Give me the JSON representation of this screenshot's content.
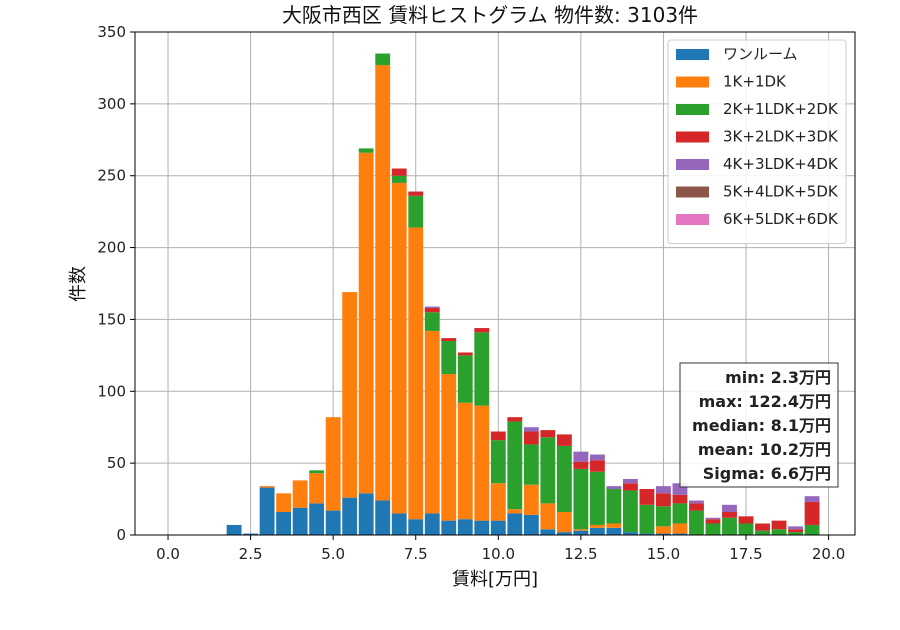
{
  "chart_data": {
    "type": "bar",
    "stacked": true,
    "title": "大阪市西区 賃料ヒストグラム 物件数: 3103件",
    "xlabel": "賃料[万円]",
    "ylabel": "件数",
    "xlim": [
      -1.0,
      20.8
    ],
    "ylim": [
      0,
      350
    ],
    "xticks": [
      "0.0",
      "2.5",
      "5.0",
      "7.5",
      "10.0",
      "12.5",
      "15.0",
      "17.5",
      "20.0"
    ],
    "yticks": [
      "0",
      "50",
      "100",
      "150",
      "200",
      "250",
      "300",
      "350"
    ],
    "grid": true,
    "legend_position": "top-right",
    "bin_width": 0.5,
    "x": [
      2.0,
      2.5,
      3.0,
      3.5,
      4.0,
      4.5,
      5.0,
      5.5,
      6.0,
      6.5,
      7.0,
      7.5,
      8.0,
      8.5,
      9.0,
      9.5,
      10.0,
      10.5,
      11.0,
      11.5,
      12.0,
      12.5,
      13.0,
      13.5,
      14.0,
      14.5,
      15.0,
      15.5,
      16.0,
      16.5,
      17.0,
      17.5,
      18.0,
      18.5,
      19.0,
      19.5
    ],
    "series": [
      {
        "name": "ワンルーム",
        "color": "#1f77b4",
        "values": [
          7,
          1,
          33,
          16,
          19,
          22,
          17,
          26,
          29,
          24,
          15,
          11,
          15,
          10,
          11,
          10,
          10,
          15,
          14,
          4,
          2,
          3,
          5,
          5,
          2,
          1,
          1,
          1,
          0,
          0,
          0,
          0,
          0,
          0,
          0,
          0
        ]
      },
      {
        "name": "1K+1DK",
        "color": "#ff7f0e",
        "values": [
          0,
          0,
          1,
          13,
          19,
          21,
          65,
          143,
          237,
          303,
          230,
          203,
          127,
          102,
          81,
          80,
          26,
          3,
          21,
          18,
          14,
          1,
          2,
          3,
          0,
          0,
          5,
          7,
          0,
          0,
          0,
          0,
          0,
          0,
          0,
          0
        ]
      },
      {
        "name": "2K+1LDK+2DK",
        "color": "#2ca02c",
        "values": [
          0,
          0,
          0,
          0,
          0,
          2,
          0,
          0,
          3,
          8,
          5,
          22,
          13,
          23,
          33,
          51,
          30,
          61,
          28,
          46,
          46,
          42,
          37,
          24,
          29,
          20,
          14,
          14,
          17,
          8,
          12,
          8,
          3,
          4,
          2,
          7
        ]
      },
      {
        "name": "3K+2LDK+3DK",
        "color": "#d62728",
        "values": [
          0,
          0,
          0,
          0,
          0,
          0,
          0,
          0,
          0,
          0,
          5,
          3,
          3,
          2,
          2,
          3,
          6,
          3,
          9,
          5,
          8,
          5,
          8,
          0,
          5,
          11,
          9,
          6,
          5,
          3,
          4,
          5,
          5,
          6,
          2,
          16
        ]
      },
      {
        "name": "4K+3LDK+4DK",
        "color": "#9467bd",
        "values": [
          0,
          0,
          0,
          0,
          0,
          0,
          0,
          0,
          0,
          0,
          0,
          0,
          1,
          0,
          0,
          0,
          0,
          0,
          3,
          0,
          0,
          7,
          4,
          2,
          3,
          0,
          5,
          8,
          2,
          1,
          5,
          0,
          0,
          0,
          2,
          4
        ]
      },
      {
        "name": "5K+4LDK+5DK",
        "color": "#8c564b",
        "values": [
          0,
          0,
          0,
          0,
          0,
          0,
          0,
          0,
          0,
          0,
          0,
          0,
          0,
          0,
          0,
          0,
          0,
          0,
          0,
          0,
          0,
          0,
          0,
          0,
          0,
          0,
          0,
          0,
          0,
          0,
          0,
          0,
          0,
          0,
          0,
          0
        ]
      },
      {
        "name": "6K+5LDK+6DK",
        "color": "#e377c2",
        "values": [
          0,
          0,
          0,
          0,
          0,
          0,
          0,
          0,
          0,
          0,
          0,
          0,
          0,
          0,
          0,
          0,
          0,
          0,
          0,
          0,
          0,
          0,
          0,
          0,
          0,
          0,
          0,
          0,
          0,
          0,
          0,
          0,
          0,
          0,
          0,
          0
        ]
      }
    ],
    "annotation": {
      "lines": [
        "min: 2.3万円",
        "max: 122.4万円",
        "median: 8.1万円",
        "mean: 10.2万円",
        "Sigma: 6.6万円"
      ]
    }
  }
}
